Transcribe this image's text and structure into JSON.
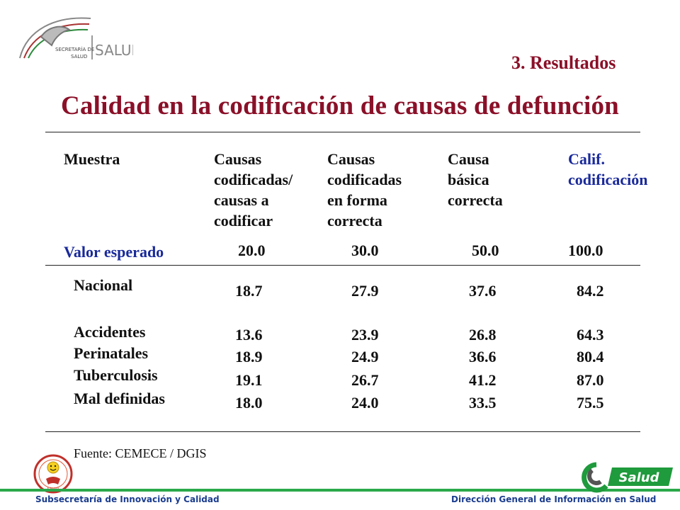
{
  "header": {
    "logo_text_top": "SECRETARÍA DE",
    "logo_text_bottom": "SALUD",
    "logo_word": "SALUD",
    "section": "3. Resultados",
    "title": "Calidad en la codificación de causas de defunción"
  },
  "table": {
    "columns": [
      {
        "lines": [
          "Muestra"
        ],
        "color": "#111111"
      },
      {
        "lines": [
          "Causas",
          "codificadas/",
          "causas a",
          "codificar"
        ],
        "color": "#111111"
      },
      {
        "lines": [
          "Causas",
          "codificadas",
          "en forma",
          "correcta"
        ],
        "color": "#111111"
      },
      {
        "lines": [
          "Causa",
          "básica",
          "correcta"
        ],
        "color": "#111111"
      },
      {
        "lines": [
          "Calif.",
          "codificación"
        ],
        "color": "#1a2a9a"
      }
    ],
    "expected": {
      "label": "Valor esperado",
      "values": [
        "20.0",
        "30.0",
        "50.0",
        "100.0"
      ]
    },
    "rows": [
      {
        "label": "Nacional",
        "values": [
          "18.7",
          "27.9",
          "37.6",
          "84.2"
        ]
      },
      {
        "label": "Accidentes",
        "values": [
          "13.6",
          "23.9",
          "26.8",
          "64.3"
        ]
      },
      {
        "label": "Perinatales",
        "values": [
          "18.9",
          "24.9",
          "36.6",
          "80.4"
        ]
      },
      {
        "label": "Tuberculosis",
        "values": [
          "19.1",
          "26.7",
          "41.2",
          "87.0"
        ]
      },
      {
        "label": "Mal definidas",
        "values": [
          "18.0",
          "24.0",
          "33.5",
          "75.5"
        ]
      }
    ]
  },
  "source": "Fuente: CEMECE / DGIS",
  "footer": {
    "left": "Subsecretaría de Innovación y Calidad",
    "right": "Dirección General de Información en Salud",
    "brand": "Salud",
    "emblem_text": "SALUD"
  },
  "colors": {
    "title": "#8a1028",
    "accent_blue": "#1a2a9a",
    "footer_green": "#2aa84a",
    "footer_text": "#1b3d8f"
  }
}
